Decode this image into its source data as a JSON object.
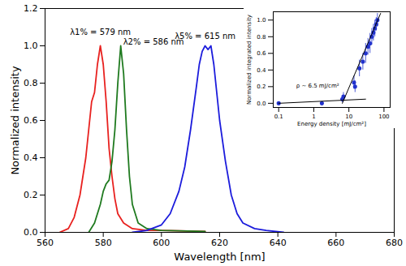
{
  "chart_data": [
    {
      "type": "line",
      "x_label": "Wavelength [nm]",
      "y_label": "Normalized intensity",
      "xlim": [
        560,
        680
      ],
      "xticks": [
        560,
        580,
        600,
        620,
        640,
        660,
        680
      ],
      "ylim": [
        0,
        1.2
      ],
      "yticks": [
        {
          "value": 0,
          "label": "0.0"
        },
        {
          "value": 0.2,
          "label": "0.2"
        },
        {
          "value": 0.4,
          "label": "0.4"
        },
        {
          "value": 0.6,
          "label": "0.6"
        },
        {
          "value": 0.8,
          "label": "0.8"
        },
        {
          "value": 1.0,
          "label": "1.0"
        },
        {
          "value": 1.2,
          "label": "1.2"
        }
      ],
      "grid": false,
      "series": [
        {
          "color": "#e8211f",
          "x": [
            565,
            568,
            570,
            572,
            574,
            575,
            576,
            577,
            578,
            579,
            580,
            581,
            582,
            583,
            584,
            585,
            587,
            590,
            595,
            600,
            615
          ],
          "values": [
            0,
            0.02,
            0.08,
            0.2,
            0.4,
            0.55,
            0.7,
            0.75,
            0.9,
            1.0,
            0.9,
            0.7,
            0.45,
            0.3,
            0.18,
            0.1,
            0.05,
            0.02,
            0.01,
            0.01,
            0.005
          ],
          "annotation": {
            "text": "λ1% = 579 nm",
            "x": 579,
            "y": 1.0
          }
        },
        {
          "color": "#1f7a1f",
          "x": [
            575,
            577,
            579,
            580,
            581,
            582,
            583,
            584,
            585,
            586,
            587,
            588,
            589,
            590,
            592,
            595,
            600,
            615
          ],
          "values": [
            0,
            0.05,
            0.15,
            0.22,
            0.26,
            0.28,
            0.38,
            0.55,
            0.8,
            1.0,
            0.85,
            0.55,
            0.3,
            0.15,
            0.05,
            0.02,
            0.01,
            0.005
          ],
          "annotation": {
            "text": "λ2% = 586 nm",
            "x": 586,
            "y": 1.0
          }
        },
        {
          "color": "#1c1cdc",
          "x": [
            590,
            595,
            600,
            603,
            606,
            608,
            610,
            612,
            613,
            614,
            615,
            616,
            617,
            618,
            619,
            620,
            622,
            624,
            626,
            628,
            632,
            636,
            642
          ],
          "values": [
            0,
            0.01,
            0.04,
            0.1,
            0.22,
            0.35,
            0.55,
            0.78,
            0.9,
            0.97,
            1.0,
            0.98,
            1.0,
            0.9,
            0.75,
            0.6,
            0.38,
            0.2,
            0.1,
            0.05,
            0.02,
            0.01,
            0
          ],
          "annotation": {
            "text": "λ5% = 615 nm",
            "x": 615,
            "y": 1.0
          }
        }
      ]
    },
    {
      "type": "scatter",
      "x_label": "Energy density [mJ/cm²]",
      "y_label": "Normalized integrated intensity",
      "log": "x",
      "xlim": [
        0.07,
        150
      ],
      "xticks": [
        0.1,
        1,
        10,
        100
      ],
      "ylim": [
        -0.05,
        1.1
      ],
      "yticks": [
        {
          "value": 0,
          "label": "0.0"
        },
        {
          "value": 0.2,
          "label": "0.2"
        },
        {
          "value": 0.4,
          "label": "0.4"
        },
        {
          "value": 0.6,
          "label": "0.6"
        },
        {
          "value": 0.8,
          "label": "0.8"
        },
        {
          "value": 1.0,
          "label": "1.0"
        }
      ],
      "grid": false,
      "annotation": {
        "text": "ρ ~ 6.5 mJ/cm²",
        "x": 6.5,
        "y": 0.05
      },
      "series": [
        {
          "type": "scatter",
          "color": "#2233cc",
          "marker": "circle",
          "x": [
            0.1,
            1.7,
            6.5,
            7,
            14,
            15,
            20,
            25,
            30,
            35,
            40,
            45,
            50,
            55,
            60,
            65
          ],
          "values": [
            0,
            0,
            0.05,
            0.08,
            0.25,
            0.2,
            0.42,
            0.5,
            0.6,
            0.68,
            0.72,
            0.8,
            0.85,
            0.9,
            0.95,
            1.0
          ],
          "errors": [
            0.01,
            0.01,
            0.04,
            0.05,
            0.08,
            0.07,
            0.1,
            0.1,
            0.12,
            0.1,
            0.12,
            0.1,
            0.1,
            0.1,
            0.08,
            0.08
          ]
        },
        {
          "type": "line",
          "color": "#000000",
          "x": [
            0.1,
            30
          ],
          "values": [
            0,
            0.05
          ]
        },
        {
          "type": "line",
          "color": "#000000",
          "x": [
            6.5,
            80
          ],
          "values": [
            0,
            1.08
          ]
        }
      ]
    }
  ]
}
